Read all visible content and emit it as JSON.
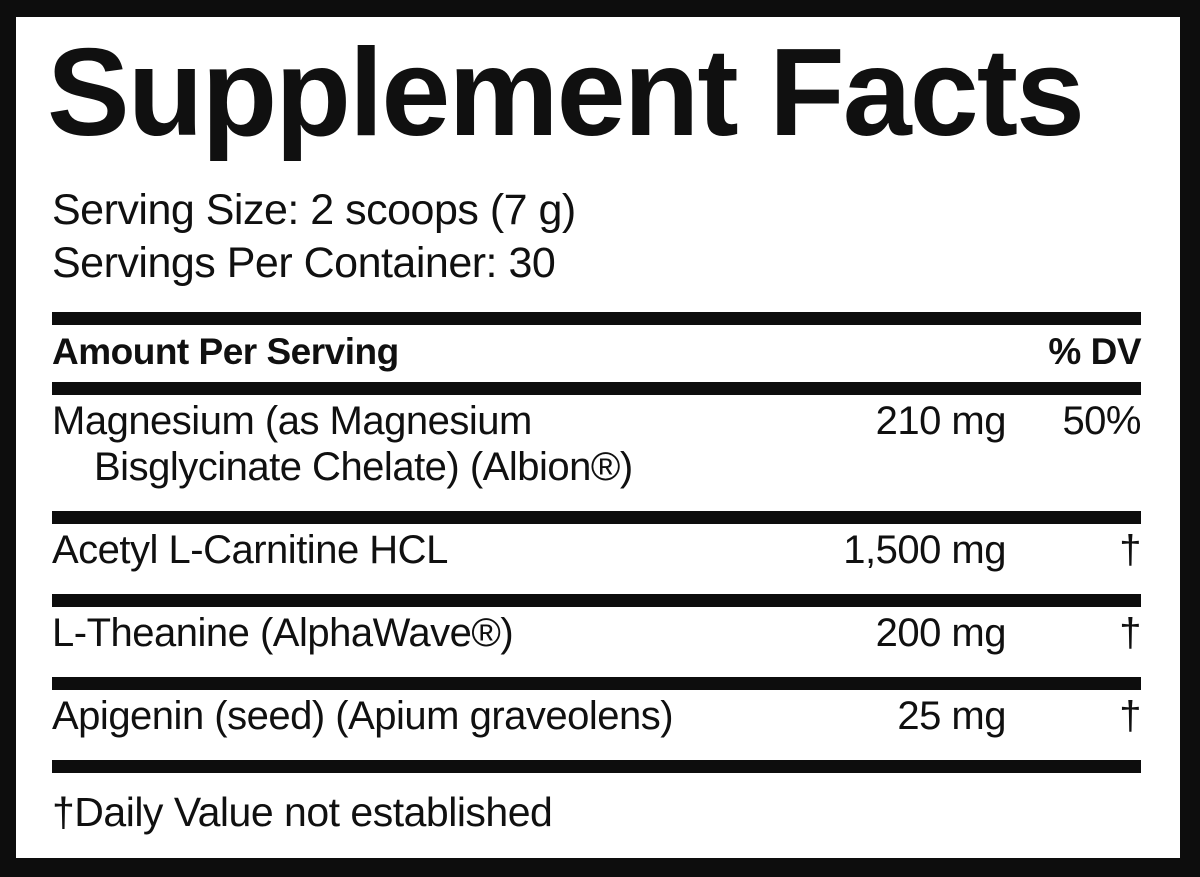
{
  "label": {
    "title": "Supplement Facts",
    "serving_size": "Serving Size: 2 scoops (7 g)",
    "servings_per_container": "Servings Per Container: 30",
    "header": {
      "amount_per_serving": "Amount Per Serving",
      "percent_dv": "% DV"
    },
    "rows": [
      {
        "name_line1": "Magnesium (as Magnesium",
        "name_line2": "Bisglycinate Chelate) (Albion®)",
        "amount": "210 mg",
        "dv": "50%"
      },
      {
        "name_line1": "Acetyl L-Carnitine HCL",
        "amount": "1,500 mg",
        "dv": "†"
      },
      {
        "name_line1": "L-Theanine (AlphaWave®)",
        "amount": "200 mg",
        "dv": "†"
      },
      {
        "name_line1": "Apigenin (seed) (Apium graveolens)",
        "amount": "25 mg",
        "dv": "†"
      }
    ],
    "footnote": "†Daily Value not established",
    "colors": {
      "frame_black": "#0d0d0d",
      "panel_white": "#ffffff",
      "text_black": "#101010"
    }
  }
}
